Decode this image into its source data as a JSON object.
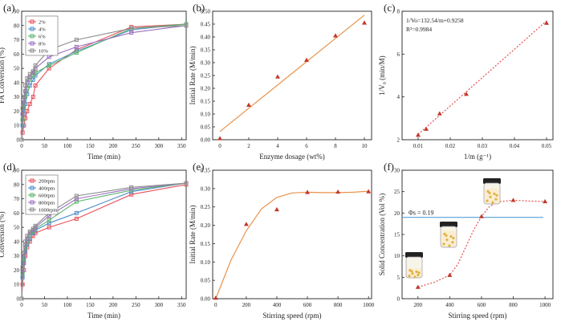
{
  "chart_data": [
    {
      "panel_label": "(a)",
      "type": "line",
      "xlabel": "Time (min)",
      "ylabel": "FA Conversion (%)",
      "xlim": [
        0,
        360
      ],
      "ylim": [
        0,
        90
      ],
      "xticks": [
        0,
        50,
        100,
        150,
        200,
        250,
        300,
        350
      ],
      "yticks": [
        0,
        10,
        20,
        30,
        40,
        50,
        60,
        70,
        80,
        90
      ],
      "legend_position": "top-left",
      "series": [
        {
          "name": "2%",
          "color": "#e8515a",
          "marker": "square",
          "x": [
            0,
            2,
            5,
            8,
            12,
            18,
            25,
            30,
            60,
            120,
            240,
            360
          ],
          "y": [
            0,
            5,
            10,
            15,
            20,
            25,
            30,
            38,
            50,
            63,
            79,
            81
          ]
        },
        {
          "name": "4%",
          "color": "#4f8fc9",
          "marker": "square",
          "x": [
            0,
            2,
            5,
            8,
            12,
            18,
            25,
            30,
            60,
            120,
            240,
            360
          ],
          "y": [
            0,
            10,
            18,
            25,
            32,
            38,
            42,
            45,
            53,
            62,
            77,
            81
          ]
        },
        {
          "name": "6%",
          "color": "#5bb56b",
          "marker": "square",
          "x": [
            0,
            2,
            5,
            8,
            12,
            18,
            25,
            30,
            60,
            120,
            240,
            360
          ],
          "y": [
            0,
            14,
            22,
            30,
            36,
            42,
            45,
            47,
            52,
            61,
            78,
            81
          ]
        },
        {
          "name": "8%",
          "color": "#9c6fbf",
          "marker": "square",
          "x": [
            0,
            2,
            5,
            8,
            12,
            18,
            25,
            30,
            60,
            120,
            240,
            360
          ],
          "y": [
            0,
            18,
            26,
            34,
            40,
            44,
            47,
            50,
            58,
            65,
            75,
            80
          ]
        },
        {
          "name": "10%",
          "color": "#8c8c8c",
          "marker": "square",
          "x": [
            0,
            2,
            5,
            8,
            12,
            18,
            25,
            30,
            60,
            120,
            240,
            360
          ],
          "y": [
            0,
            22,
            30,
            38,
            43,
            46,
            48,
            52,
            63,
            70,
            78,
            80
          ]
        }
      ]
    },
    {
      "panel_label": "(b)",
      "type": "scatter",
      "xlabel": "Enzyme dosage (wt%)",
      "ylabel": "Initial Rate (M/min)",
      "xlim": [
        -0.5,
        10.5
      ],
      "ylim": [
        0,
        0.5
      ],
      "xticks": [
        0,
        2,
        4,
        6,
        8,
        10
      ],
      "yticks": [
        0.0,
        0.05,
        0.1,
        0.15,
        0.2,
        0.25,
        0.3,
        0.35,
        0.4,
        0.45,
        0.5
      ],
      "ytick_labels": [
        "0.00",
        "0.05",
        "0.10",
        "0.15",
        "0.20",
        "0.25",
        "0.30",
        "0.35",
        "0.40",
        "0.45",
        "0.50"
      ],
      "points": {
        "x": [
          0,
          2,
          4,
          6,
          8,
          10
        ],
        "y": [
          0.005,
          0.135,
          0.245,
          0.31,
          0.405,
          0.455
        ],
        "color": "#c0392b"
      },
      "fit": {
        "x": [
          0,
          10
        ],
        "y": [
          0.032,
          0.485
        ],
        "color": "#e8924a"
      }
    },
    {
      "panel_label": "(c)",
      "type": "scatter",
      "xlabel": "1/m (g⁻¹)",
      "ylabel": "1/V₀ (min/M)",
      "xlim": [
        0.005,
        0.052
      ],
      "ylim": [
        2,
        8
      ],
      "xticks": [
        0.01,
        0.02,
        0.03,
        0.04,
        0.05
      ],
      "xtick_labels": [
        "0.01",
        "0.02",
        "0.03",
        "0.04",
        "0.05"
      ],
      "yticks": [
        2,
        4,
        6,
        8
      ],
      "annotation": "1/Vo=132.54/m+0.9258",
      "annotation2": "R²=0.9984",
      "points": {
        "x": [
          0.01,
          0.0125,
          0.0167,
          0.025,
          0.05
        ],
        "y": [
          2.22,
          2.5,
          3.22,
          4.13,
          7.45
        ],
        "color": "#c0392b"
      },
      "fit": {
        "x": [
          0.01,
          0.05
        ],
        "y": [
          2.25,
          7.55
        ],
        "color": "#e05050",
        "dashed": true
      }
    },
    {
      "panel_label": "(d)",
      "type": "line",
      "xlabel": "Time (min)",
      "ylabel": "Conversion (%)",
      "xlim": [
        0,
        360
      ],
      "ylim": [
        0,
        90
      ],
      "xticks": [
        0,
        50,
        100,
        150,
        200,
        250,
        300,
        350
      ],
      "yticks": [
        0,
        10,
        20,
        30,
        40,
        50,
        60,
        70,
        80,
        90
      ],
      "legend_position": "top-left",
      "series": [
        {
          "name": "200rpm",
          "color": "#e8515a",
          "marker": "square",
          "x": [
            0,
            2,
            5,
            8,
            12,
            18,
            25,
            30,
            60,
            120,
            240,
            360
          ],
          "y": [
            0,
            10,
            20,
            30,
            36,
            40,
            44,
            46,
            50,
            56,
            73,
            80
          ]
        },
        {
          "name": "400rpm",
          "color": "#4f8fc9",
          "marker": "square",
          "x": [
            0,
            2,
            5,
            8,
            12,
            18,
            25,
            30,
            60,
            120,
            240,
            360
          ],
          "y": [
            0,
            15,
            25,
            33,
            38,
            42,
            46,
            48,
            53,
            60,
            75,
            81
          ]
        },
        {
          "name": "600rpm",
          "color": "#5bb56b",
          "marker": "square",
          "x": [
            0,
            2,
            5,
            8,
            12,
            18,
            25,
            30,
            60,
            120,
            240,
            360
          ],
          "y": [
            0,
            18,
            28,
            36,
            40,
            44,
            47,
            49,
            55,
            68,
            76,
            81
          ]
        },
        {
          "name": "800rpm",
          "color": "#9c6fbf",
          "marker": "square",
          "x": [
            0,
            2,
            5,
            8,
            12,
            18,
            25,
            30,
            60,
            120,
            240,
            360
          ],
          "y": [
            0,
            20,
            30,
            38,
            42,
            46,
            48,
            50,
            58,
            70,
            77,
            81
          ]
        },
        {
          "name": "1000rpm",
          "color": "#8c8c8c",
          "marker": "square",
          "x": [
            0,
            2,
            5,
            8,
            12,
            18,
            25,
            30,
            60,
            120,
            240,
            360
          ],
          "y": [
            0,
            22,
            32,
            40,
            44,
            47,
            49,
            51,
            60,
            72,
            78,
            81
          ]
        }
      ]
    },
    {
      "panel_label": "(e)",
      "type": "scatter",
      "xlabel": "Stirring speed (rpm)",
      "ylabel": "Initial Rate (M/min)",
      "xlim": [
        -20,
        1020
      ],
      "ylim": [
        0,
        0.35
      ],
      "xticks": [
        0,
        200,
        400,
        600,
        800,
        1000
      ],
      "yticks": [
        0.0,
        0.05,
        0.1,
        0.15,
        0.2,
        0.25,
        0.3,
        0.35
      ],
      "ytick_labels": [
        "0.00",
        "0.05",
        "0.10",
        "0.15",
        "0.20",
        "0.25",
        "0.30",
        "0.35"
      ],
      "points": {
        "x": [
          0,
          200,
          400,
          600,
          800,
          1000
        ],
        "y": [
          0.002,
          0.203,
          0.243,
          0.29,
          0.291,
          0.292
        ],
        "color": "#c0392b"
      },
      "fit": {
        "x": [
          0,
          100,
          200,
          300,
          400,
          500,
          600,
          700,
          800,
          900,
          1000
        ],
        "y": [
          0.0,
          0.105,
          0.185,
          0.245,
          0.276,
          0.288,
          0.29,
          0.289,
          0.289,
          0.29,
          0.293
        ],
        "color": "#e8924a"
      }
    },
    {
      "panel_label": "(f)",
      "type": "scatter",
      "xlabel": "Stirring speed (rpm)",
      "ylabel": "Solid Concentration (Vol %)",
      "xlim": [
        100,
        1050
      ],
      "ylim": [
        0,
        30
      ],
      "xticks": [
        200,
        400,
        600,
        800,
        1000
      ],
      "yticks": [
        0,
        5,
        10,
        15,
        20,
        25,
        30
      ],
      "reference_line": {
        "y": 19,
        "label": "Φs = 0.19",
        "color": "#5aa0d8"
      },
      "points": {
        "x": [
          200,
          400,
          600,
          800,
          1000
        ],
        "y": [
          2.7,
          5.5,
          19.2,
          23.0,
          22.7
        ],
        "color": "#c0392b"
      },
      "fit": {
        "x": [
          200,
          300,
          400,
          450,
          500,
          550,
          600,
          650,
          700,
          800,
          900,
          1000
        ],
        "y": [
          2.7,
          3.8,
          5.5,
          8.0,
          12.0,
          16.0,
          19.2,
          21.5,
          22.6,
          23.0,
          22.8,
          22.7
        ],
        "color": "#e05050",
        "dashed": true
      }
    }
  ]
}
